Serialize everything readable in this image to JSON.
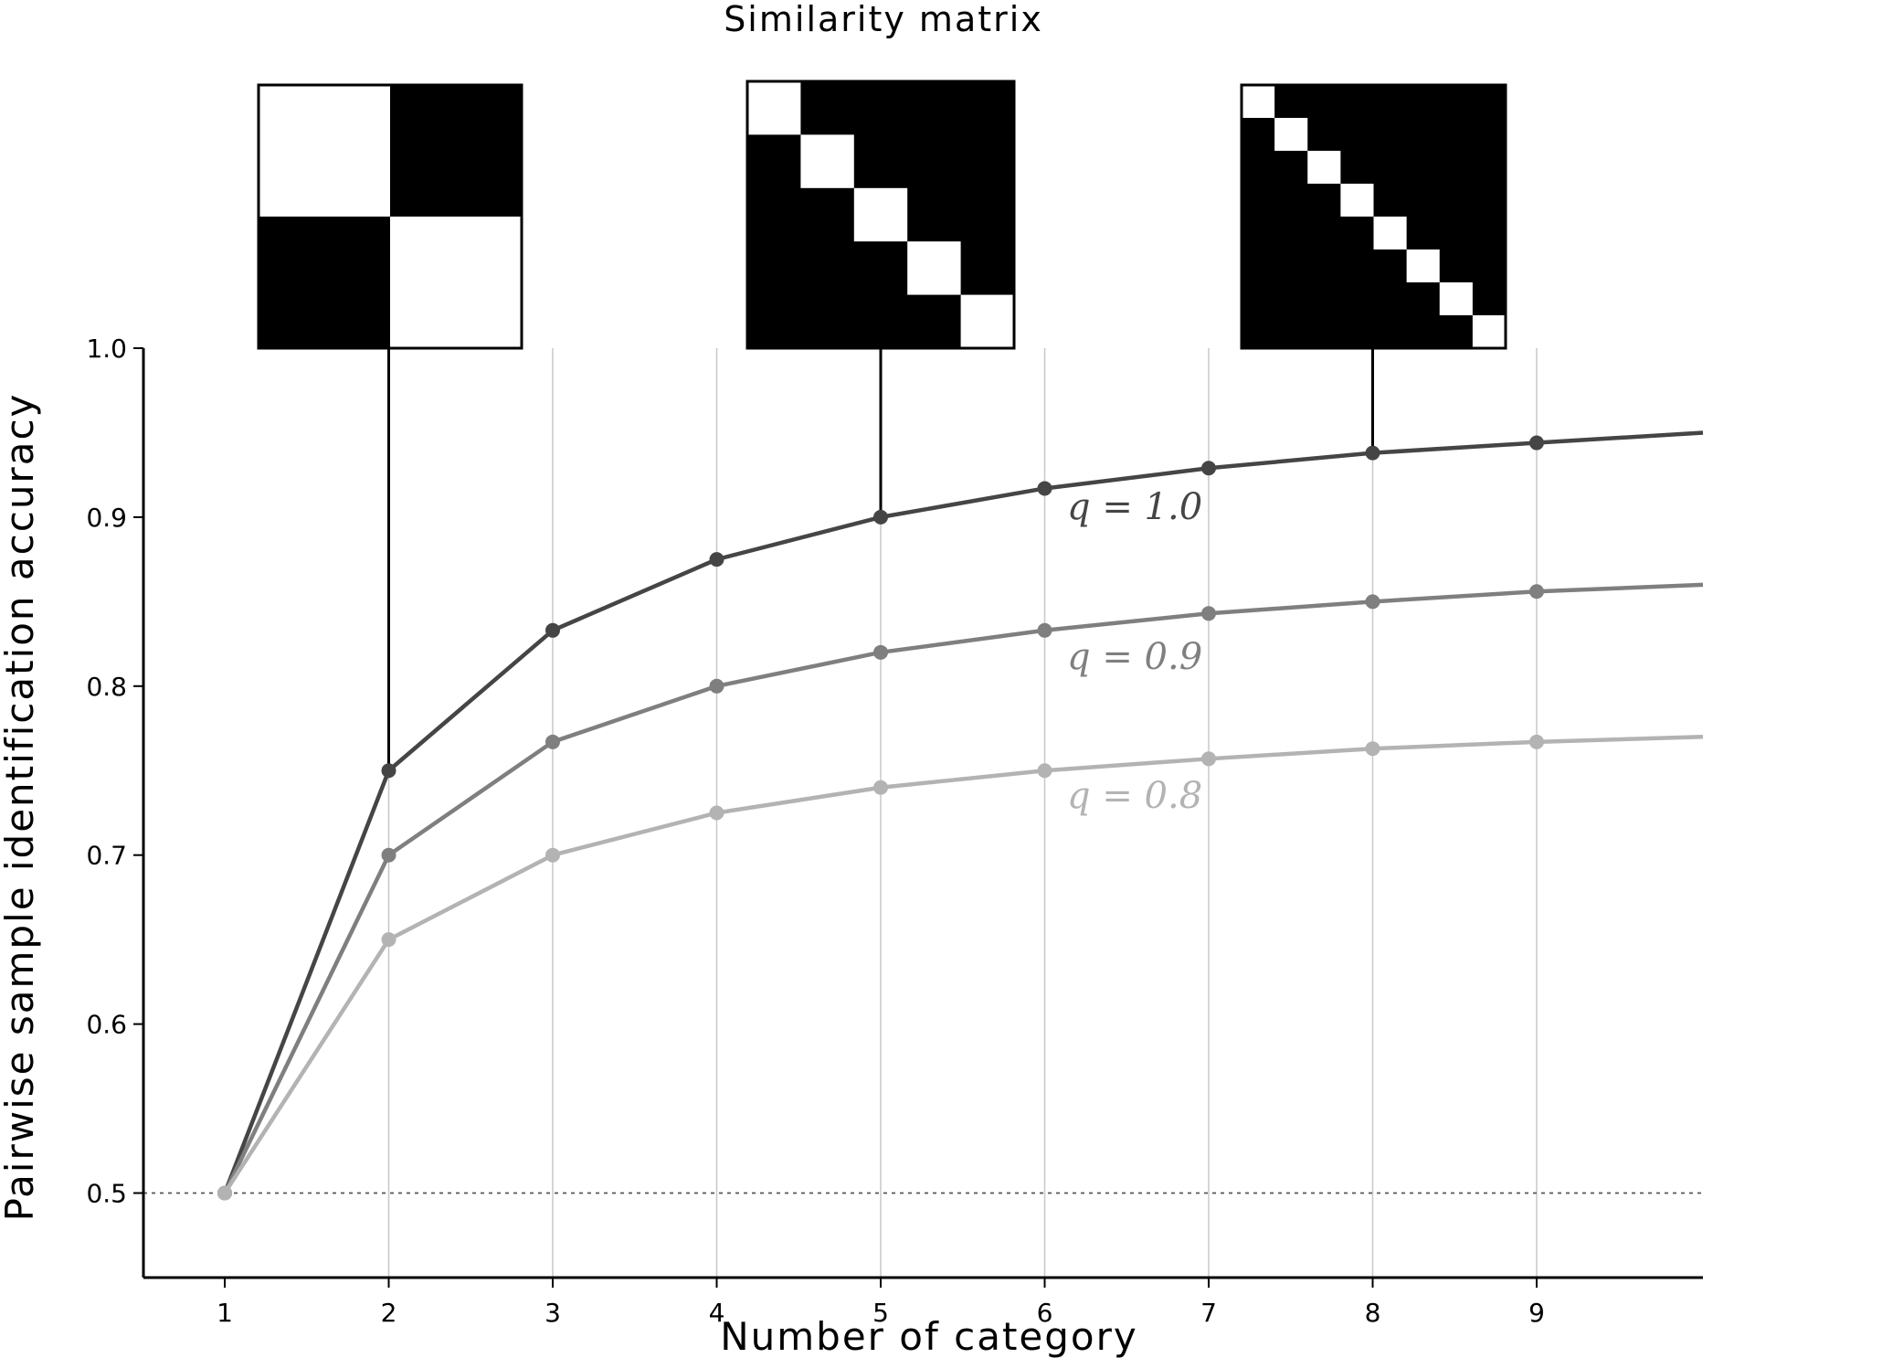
{
  "chart_data": {
    "type": "line",
    "title": "Similarity matrix",
    "xlabel": "Number of category",
    "ylabel": "Pairwise sample identification accuracy",
    "xlim": [
      0.5,
      10.0
    ],
    "ylim": [
      0.45,
      1.0
    ],
    "xticks": [
      1,
      2,
      3,
      4,
      5,
      6,
      7,
      8,
      9
    ],
    "yticks": [
      "0.5",
      "0.6",
      "0.7",
      "0.8",
      "0.9",
      "1.0"
    ],
    "grid": "vertical lines at x ticks",
    "reference_line": {
      "y": 0.5,
      "style": "dotted"
    },
    "x": [
      1,
      2,
      3,
      4,
      5,
      6,
      7,
      8,
      9
    ],
    "series": [
      {
        "name": "q = 1.0",
        "color": "#454545",
        "values": [
          0.5,
          0.75,
          0.833,
          0.875,
          0.9,
          0.917,
          0.929,
          0.938,
          0.944
        ],
        "trail_end": 0.95
      },
      {
        "name": "q = 0.9",
        "color": "#7f7f7f",
        "values": [
          0.5,
          0.7,
          0.767,
          0.8,
          0.82,
          0.833,
          0.843,
          0.85,
          0.856
        ],
        "trail_end": 0.86
      },
      {
        "name": "q = 0.8",
        "color": "#b3b3b3",
        "values": [
          0.5,
          0.65,
          0.7,
          0.725,
          0.74,
          0.75,
          0.757,
          0.763,
          0.767
        ],
        "trail_end": 0.77
      }
    ],
    "insets": [
      {
        "categories": 2,
        "anchor_x": 2,
        "anchor_y": 0.75
      },
      {
        "categories": 5,
        "anchor_x": 5,
        "anchor_y": 0.9
      },
      {
        "categories": 8,
        "anchor_x": 8,
        "anchor_y": 0.938
      }
    ]
  }
}
